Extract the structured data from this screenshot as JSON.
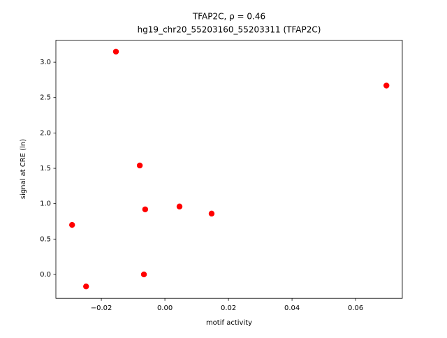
{
  "chart_data": {
    "type": "scatter",
    "title": "TFAP2C, ρ = 0.46",
    "subtitle": "hg19_chr20_55203160_55203311 (TFAP2C)",
    "x_label": "motif activity",
    "y_label": "signal at CRE (ln)",
    "color": "#ff0000",
    "x": [
      -0.0154,
      0.0697,
      -0.0079,
      -0.0062,
      0.0046,
      0.0147,
      -0.0292,
      -0.0248,
      -0.0066
    ],
    "y": [
      3.15,
      2.67,
      1.54,
      0.92,
      0.96,
      0.86,
      0.7,
      -0.17,
      0.0
    ],
    "xlim": [
      -0.0343,
      0.0747
    ],
    "ylim": [
      -0.338,
      3.311
    ],
    "xticks": [
      {
        "value": -0.02,
        "label": "−0.02"
      },
      {
        "value": 0,
        "label": "0.00"
      },
      {
        "value": 0.02,
        "label": "0.02"
      },
      {
        "value": 0.04,
        "label": "0.04"
      },
      {
        "value": 0.06,
        "label": "0.06"
      }
    ],
    "yticks": [
      {
        "value": 0,
        "label": "0.0"
      },
      0.5,
      {
        "value": 1,
        "label": "1.0"
      },
      1.5,
      {
        "value": 2,
        "label": "2.0"
      },
      2.5,
      {
        "value": 3,
        "label": "3.0"
      }
    ],
    "grid": false
  }
}
